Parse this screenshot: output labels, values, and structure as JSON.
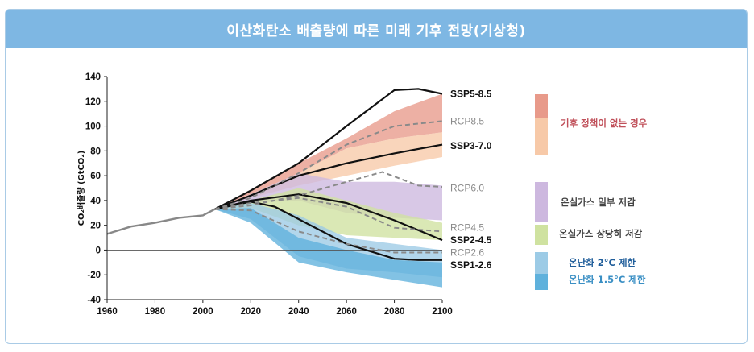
{
  "header": {
    "title": "이산화탄소 배출량에 따른 미래 기후 전망(기상청)"
  },
  "chart_data": {
    "type": "line",
    "title": "이산화탄소 배출량에 따른 미래 기후 전망(기상청)",
    "xlabel": "",
    "ylabel": "CO₂배출량 (GtCO₂)",
    "xlim": [
      1960,
      2100
    ],
    "ylim": [
      -40,
      140
    ],
    "x_ticks": [
      "1960",
      "1980",
      "2000",
      "2020",
      "2040",
      "2060",
      "2080",
      "2100"
    ],
    "y_ticks": [
      "140",
      "120",
      "100",
      "80",
      "60",
      "40",
      "20",
      "0",
      "-20",
      "-40"
    ],
    "grid": false,
    "historical": {
      "x": [
        1960,
        1970,
        1980,
        1990,
        2000,
        2005
      ],
      "y": [
        13,
        19,
        22,
        26,
        28,
        33
      ]
    },
    "bands": [
      {
        "name": "기후 정책이 없는 경우",
        "color": "#e89a8a",
        "upper": [
          [
            2005,
            33
          ],
          [
            2020,
            48
          ],
          [
            2040,
            70
          ],
          [
            2060,
            90
          ],
          [
            2080,
            112
          ],
          [
            2100,
            126
          ]
        ],
        "lower": [
          [
            2100,
            95
          ],
          [
            2080,
            90
          ],
          [
            2060,
            82
          ],
          [
            2040,
            62
          ],
          [
            2020,
            45
          ],
          [
            2005,
            33
          ]
        ]
      },
      {
        "name": "기후 정책이 없는 경우",
        "color": "#f7c9a8",
        "upper": [
          [
            2005,
            33
          ],
          [
            2020,
            45
          ],
          [
            2040,
            62
          ],
          [
            2060,
            82
          ],
          [
            2080,
            90
          ],
          [
            2100,
            95
          ]
        ],
        "lower": [
          [
            2100,
            75
          ],
          [
            2080,
            68
          ],
          [
            2060,
            60
          ],
          [
            2040,
            52
          ],
          [
            2020,
            42
          ],
          [
            2005,
            33
          ]
        ]
      },
      {
        "name": "온실가스 일부 저감",
        "color": "#cdb8df",
        "upper": [
          [
            2005,
            33
          ],
          [
            2020,
            45
          ],
          [
            2040,
            62
          ],
          [
            2060,
            55
          ],
          [
            2080,
            55
          ],
          [
            2100,
            52
          ]
        ],
        "lower": [
          [
            2100,
            24
          ],
          [
            2080,
            26
          ],
          [
            2060,
            30
          ],
          [
            2040,
            40
          ],
          [
            2020,
            38
          ],
          [
            2005,
            33
          ]
        ]
      },
      {
        "name": "온실가스 상당히 저감",
        "color": "#cfe2a0",
        "upper": [
          [
            2005,
            33
          ],
          [
            2020,
            40
          ],
          [
            2040,
            50
          ],
          [
            2060,
            40
          ],
          [
            2080,
            30
          ],
          [
            2100,
            22
          ]
        ],
        "lower": [
          [
            2100,
            8
          ],
          [
            2080,
            10
          ],
          [
            2060,
            12
          ],
          [
            2040,
            20
          ],
          [
            2020,
            34
          ],
          [
            2005,
            33
          ]
        ]
      },
      {
        "name": "온난화 2°C 제한",
        "color": "#9ccbe6",
        "upper": [
          [
            2005,
            33
          ],
          [
            2020,
            38
          ],
          [
            2040,
            28
          ],
          [
            2060,
            10
          ],
          [
            2080,
            5
          ],
          [
            2100,
            0
          ]
        ],
        "lower": [
          [
            2100,
            -22
          ],
          [
            2080,
            -18
          ],
          [
            2060,
            -15
          ],
          [
            2040,
            -5
          ],
          [
            2020,
            25
          ],
          [
            2005,
            33
          ]
        ]
      },
      {
        "name": "온난화 1.5°C 제한",
        "color": "#5fb1dc",
        "upper": [
          [
            2005,
            33
          ],
          [
            2020,
            34
          ],
          [
            2040,
            10
          ],
          [
            2060,
            0
          ],
          [
            2080,
            -8
          ],
          [
            2100,
            -10
          ]
        ],
        "lower": [
          [
            2100,
            -30
          ],
          [
            2080,
            -24
          ],
          [
            2060,
            -18
          ],
          [
            2040,
            -10
          ],
          [
            2020,
            22
          ],
          [
            2005,
            33
          ]
        ]
      }
    ],
    "series": [
      {
        "name": "SSP5-8.5",
        "style": "solid",
        "x": [
          2005,
          2020,
          2040,
          2060,
          2080,
          2090,
          2100
        ],
        "y": [
          33,
          48,
          70,
          100,
          129,
          130,
          126
        ]
      },
      {
        "name": "SSP3-7.0",
        "style": "solid",
        "x": [
          2005,
          2020,
          2040,
          2060,
          2080,
          2100
        ],
        "y": [
          33,
          44,
          60,
          70,
          78,
          85
        ]
      },
      {
        "name": "SSP2-4.5",
        "style": "solid",
        "x": [
          2005,
          2020,
          2040,
          2060,
          2080,
          2100
        ],
        "y": [
          33,
          40,
          45,
          38,
          24,
          8
        ]
      },
      {
        "name": "SSP1-2.6",
        "style": "solid",
        "x": [
          2005,
          2020,
          2030,
          2040,
          2060,
          2080,
          2090,
          2100
        ],
        "y": [
          33,
          39,
          35,
          25,
          5,
          -7,
          -8,
          -8
        ]
      },
      {
        "name": "RCP8.5",
        "style": "dashed",
        "x": [
          2005,
          2020,
          2040,
          2060,
          2080,
          2090,
          2100
        ],
        "y": [
          33,
          42,
          62,
          85,
          100,
          102,
          104
        ]
      },
      {
        "name": "RCP6.0",
        "style": "dashed",
        "x": [
          2005,
          2020,
          2040,
          2060,
          2075,
          2090,
          2100
        ],
        "y": [
          33,
          36,
          44,
          55,
          63,
          52,
          51
        ]
      },
      {
        "name": "RCP4.5",
        "style": "dashed",
        "x": [
          2005,
          2020,
          2040,
          2060,
          2080,
          2100
        ],
        "y": [
          33,
          38,
          42,
          35,
          18,
          15
        ]
      },
      {
        "name": "RCP2.6",
        "style": "dashed",
        "x": [
          2005,
          2020,
          2040,
          2060,
          2080,
          2100
        ],
        "y": [
          33,
          32,
          15,
          5,
          -2,
          -2
        ]
      }
    ],
    "legend": [
      {
        "label": "기후 정책이 없는 경우",
        "color": "#c0505a",
        "swatch": [
          "#e89a8a",
          "#f7c9a8"
        ]
      },
      {
        "label": "온실가스 일부 저감",
        "color": "#444444",
        "swatch": [
          "#cdb8df"
        ]
      },
      {
        "label": "온실가스 상당히 저감",
        "color": "#444444",
        "swatch": [
          "#cfe2a0"
        ]
      },
      {
        "label": "온난화 2°C 제한",
        "color": "#1f5d9a",
        "swatch": [
          "#9ccbe6"
        ]
      },
      {
        "label": "온난화 1.5°C 제한",
        "color": "#3a8fc4",
        "swatch": [
          "#5fb1dc"
        ]
      }
    ]
  }
}
